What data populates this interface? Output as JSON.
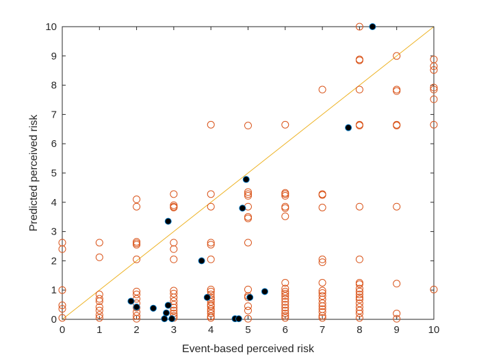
{
  "chart_data": {
    "type": "scatter",
    "title": "",
    "xlabel": "Event-based perceived risk",
    "ylabel": "Predicted perceived risk",
    "xlim": [
      0,
      10
    ],
    "ylim": [
      0,
      10
    ],
    "xticks": [
      "0",
      "1",
      "2",
      "3",
      "4",
      "5",
      "6",
      "7",
      "8",
      "9",
      "10"
    ],
    "yticks": [
      "0",
      "1",
      "2",
      "3",
      "4",
      "5",
      "6",
      "7",
      "8",
      "9",
      "10"
    ],
    "grid": false,
    "legend": "none",
    "reference_line": {
      "x": [
        0,
        10
      ],
      "y": [
        0,
        10
      ],
      "color": "#EDB120"
    },
    "series": [
      {
        "marker": "open-circle",
        "color": "#D95319",
        "points": [
          [
            0,
            2.62
          ],
          [
            0,
            2.4
          ],
          [
            0,
            1.0
          ],
          [
            0,
            0.48
          ],
          [
            0,
            0.36
          ],
          [
            0,
            0.05
          ],
          [
            1,
            2.62
          ],
          [
            1,
            2.12
          ],
          [
            1,
            0.85
          ],
          [
            1,
            0.7
          ],
          [
            1,
            0.62
          ],
          [
            1,
            0.42
          ],
          [
            1,
            0.3
          ],
          [
            1,
            0.15
          ],
          [
            1,
            0.05
          ],
          [
            2,
            4.1
          ],
          [
            2,
            3.85
          ],
          [
            2,
            2.65
          ],
          [
            2,
            2.6
          ],
          [
            2,
            2.55
          ],
          [
            2,
            2.05
          ],
          [
            2,
            0.95
          ],
          [
            2,
            0.85
          ],
          [
            2,
            0.7
          ],
          [
            2,
            0.55
          ],
          [
            2,
            0.4
          ],
          [
            2,
            0.25
          ],
          [
            2,
            0.12
          ],
          [
            2,
            0.02
          ],
          [
            3,
            4.28
          ],
          [
            3,
            3.9
          ],
          [
            3,
            3.85
          ],
          [
            3,
            3.82
          ],
          [
            3,
            2.62
          ],
          [
            3,
            2.4
          ],
          [
            3,
            2.05
          ],
          [
            3,
            0.98
          ],
          [
            3,
            0.88
          ],
          [
            3,
            0.75
          ],
          [
            3,
            0.62
          ],
          [
            3,
            0.5
          ],
          [
            3,
            0.4
          ],
          [
            3,
            0.3
          ],
          [
            3,
            0.2
          ],
          [
            3,
            0.12
          ],
          [
            3,
            0.05
          ],
          [
            4,
            6.65
          ],
          [
            4,
            4.28
          ],
          [
            4,
            3.85
          ],
          [
            4,
            2.62
          ],
          [
            4,
            2.55
          ],
          [
            4,
            2.05
          ],
          [
            4,
            1.02
          ],
          [
            4,
            0.95
          ],
          [
            4,
            0.85
          ],
          [
            4,
            0.75
          ],
          [
            4,
            0.68
          ],
          [
            4,
            0.6
          ],
          [
            4,
            0.5
          ],
          [
            4,
            0.45
          ],
          [
            4,
            0.35
          ],
          [
            4,
            0.28
          ],
          [
            4,
            0.2
          ],
          [
            4,
            0.1
          ],
          [
            4,
            0.05
          ],
          [
            5,
            6.62
          ],
          [
            5,
            4.35
          ],
          [
            5,
            4.28
          ],
          [
            5,
            4.22
          ],
          [
            5,
            3.85
          ],
          [
            5,
            3.5
          ],
          [
            5,
            3.45
          ],
          [
            5,
            2.62
          ],
          [
            5,
            1.02
          ],
          [
            5,
            0.8
          ],
          [
            5,
            0.75
          ],
          [
            5,
            0.45
          ],
          [
            5,
            0.3
          ],
          [
            5,
            0.02
          ],
          [
            6,
            6.65
          ],
          [
            6,
            4.32
          ],
          [
            6,
            4.28
          ],
          [
            6,
            4.22
          ],
          [
            6,
            3.85
          ],
          [
            6,
            3.8
          ],
          [
            6,
            3.52
          ],
          [
            6,
            1.25
          ],
          [
            6,
            1.05
          ],
          [
            6,
            0.95
          ],
          [
            6,
            0.88
          ],
          [
            6,
            0.8
          ],
          [
            6,
            0.7
          ],
          [
            6,
            0.6
          ],
          [
            6,
            0.5
          ],
          [
            6,
            0.4
          ],
          [
            6,
            0.3
          ],
          [
            6,
            0.2
          ],
          [
            6,
            0.12
          ],
          [
            6,
            0.05
          ],
          [
            7,
            7.85
          ],
          [
            7,
            4.28
          ],
          [
            7,
            4.25
          ],
          [
            7,
            3.82
          ],
          [
            7,
            2.05
          ],
          [
            7,
            1.95
          ],
          [
            7,
            1.25
          ],
          [
            7,
            0.98
          ],
          [
            7,
            0.9
          ],
          [
            7,
            0.8
          ],
          [
            7,
            0.68
          ],
          [
            7,
            0.55
          ],
          [
            7,
            0.45
          ],
          [
            7,
            0.35
          ],
          [
            7,
            0.25
          ],
          [
            7,
            0.12
          ],
          [
            7,
            0.05
          ],
          [
            8,
            10.0
          ],
          [
            8,
            8.88
          ],
          [
            8,
            8.85
          ],
          [
            8,
            7.85
          ],
          [
            8,
            6.65
          ],
          [
            8,
            6.62
          ],
          [
            8,
            3.85
          ],
          [
            8,
            2.05
          ],
          [
            8,
            1.25
          ],
          [
            8,
            1.2
          ],
          [
            8,
            1.05
          ],
          [
            8,
            0.95
          ],
          [
            8,
            0.85
          ],
          [
            8,
            0.75
          ],
          [
            8,
            0.68
          ],
          [
            8,
            0.55
          ],
          [
            8,
            0.42
          ],
          [
            8,
            0.3
          ],
          [
            8,
            0.2
          ],
          [
            8,
            0.05
          ],
          [
            9,
            9.0
          ],
          [
            9,
            7.85
          ],
          [
            9,
            7.8
          ],
          [
            9,
            6.65
          ],
          [
            9,
            6.62
          ],
          [
            9,
            3.85
          ],
          [
            9,
            1.22
          ],
          [
            9,
            0.2
          ],
          [
            9,
            0.02
          ],
          [
            10,
            8.88
          ],
          [
            10,
            8.65
          ],
          [
            10,
            8.52
          ],
          [
            10,
            7.92
          ],
          [
            10,
            7.85
          ],
          [
            10,
            7.52
          ],
          [
            10,
            6.65
          ],
          [
            10,
            1.02
          ]
        ]
      },
      {
        "marker": "filled-circle",
        "color": "#000000",
        "edgecolor": "#0072BD",
        "points": [
          [
            1.85,
            0.62
          ],
          [
            2.0,
            0.42
          ],
          [
            2.45,
            0.38
          ],
          [
            2.75,
            0.02
          ],
          [
            2.8,
            0.22
          ],
          [
            2.85,
            3.35
          ],
          [
            2.85,
            0.48
          ],
          [
            2.95,
            0.02
          ],
          [
            3.75,
            2.0
          ],
          [
            3.9,
            0.75
          ],
          [
            4.65,
            0.02
          ],
          [
            4.75,
            0.02
          ],
          [
            4.85,
            3.8
          ],
          [
            4.95,
            4.78
          ],
          [
            5.05,
            0.75
          ],
          [
            5.45,
            0.95
          ],
          [
            7.7,
            6.55
          ],
          [
            8.35,
            10.0
          ]
        ]
      }
    ]
  }
}
